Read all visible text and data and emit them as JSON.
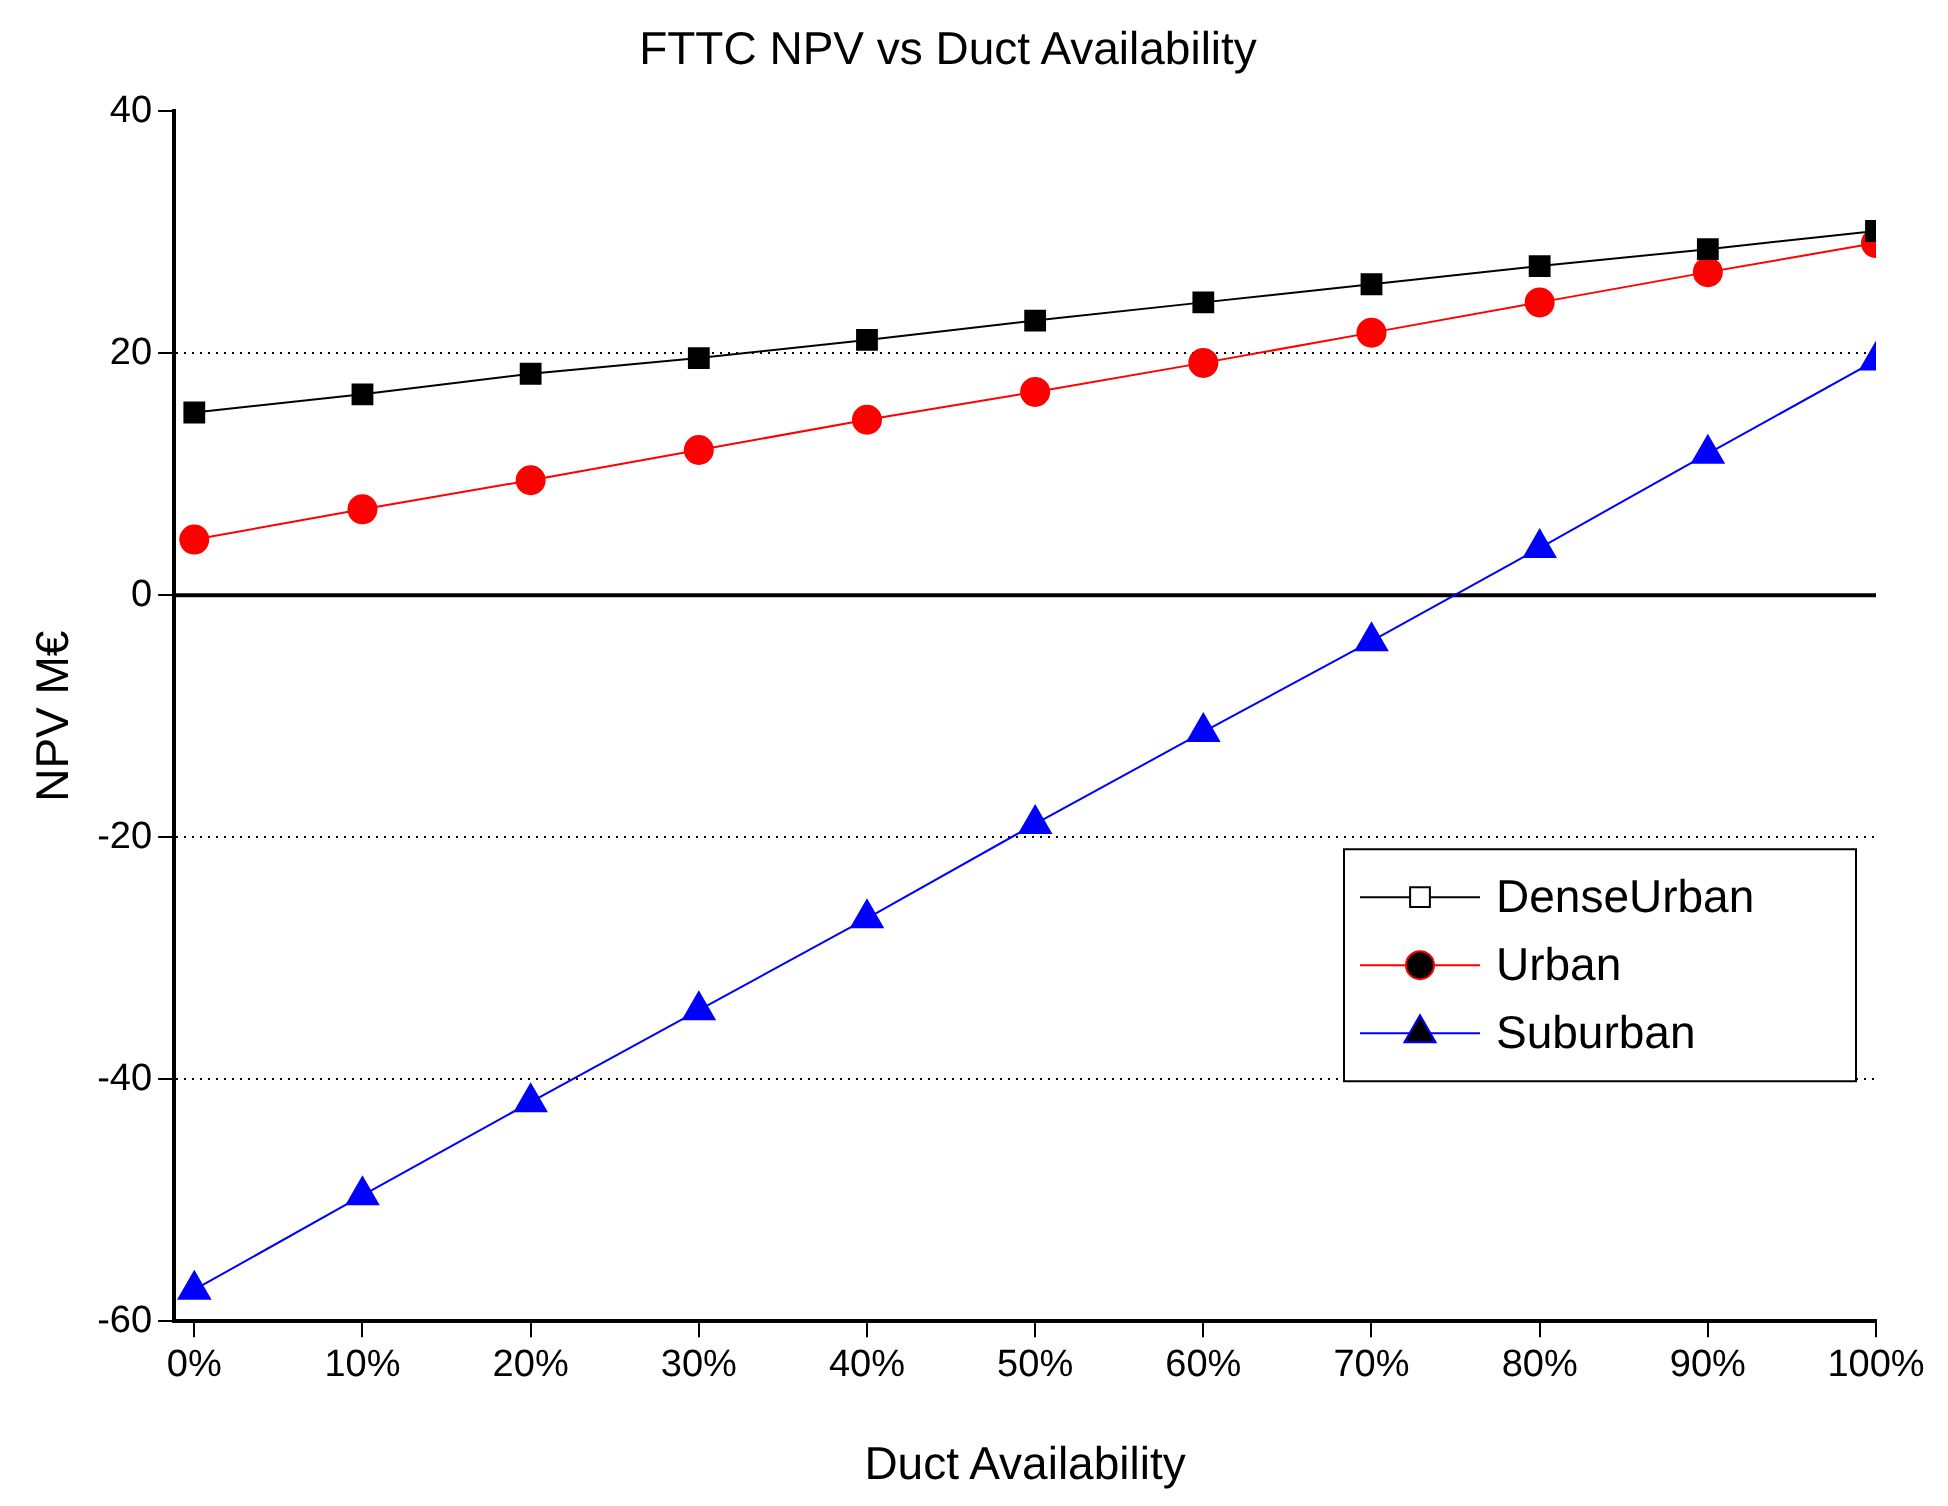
{
  "chart_data": {
    "type": "line",
    "title": "FTTC NPV vs Duct Availability",
    "xlabel": "Duct Availability",
    "ylabel": "NPV M€",
    "x": [
      0,
      10,
      20,
      30,
      40,
      50,
      60,
      70,
      80,
      90,
      100
    ],
    "series": [
      {
        "name": "DenseUrban",
        "color": "#000000",
        "marker": "square",
        "values": [
          15.1,
          16.6,
          18.3,
          19.6,
          21.1,
          22.7,
          24.2,
          25.7,
          27.2,
          28.6,
          30.1
        ]
      },
      {
        "name": "Urban",
        "color": "#ff0000",
        "marker": "circle",
        "values": [
          4.6,
          7.1,
          9.5,
          12,
          14.5,
          16.8,
          19.2,
          21.7,
          24.2,
          26.7,
          29.1
        ]
      },
      {
        "name": "Suburban",
        "color": "#0000ff",
        "marker": "triangle",
        "values": [
          -57.4,
          -49.6,
          -41.9,
          -34.3,
          -26.7,
          -18.9,
          -11.3,
          -3.8,
          3.9,
          11.7,
          19.4
        ]
      }
    ],
    "xlim": [
      -1.2,
      100
    ],
    "xticks": [
      {
        "value": 0,
        "label": "0%"
      },
      {
        "value": 10,
        "label": "10%"
      },
      {
        "value": 20,
        "label": "20%"
      },
      {
        "value": 30,
        "label": "30%"
      },
      {
        "value": 40,
        "label": "40%"
      },
      {
        "value": 50,
        "label": "50%"
      },
      {
        "value": 60,
        "label": "60%"
      },
      {
        "value": 70,
        "label": "70%"
      },
      {
        "value": 80,
        "label": "80%"
      },
      {
        "value": 90,
        "label": "90%"
      },
      {
        "value": 100,
        "label": "100%"
      }
    ],
    "ylim": [
      -60,
      40
    ],
    "yticks": [
      -60,
      -40,
      -20,
      0,
      20,
      40
    ],
    "grid": "y",
    "legend": "bottom right",
    "line_style": "solid",
    "ref_lines": [
      {
        "axis": "y",
        "value": 0,
        "color": "#000000",
        "line_style": "solid"
      }
    ]
  }
}
